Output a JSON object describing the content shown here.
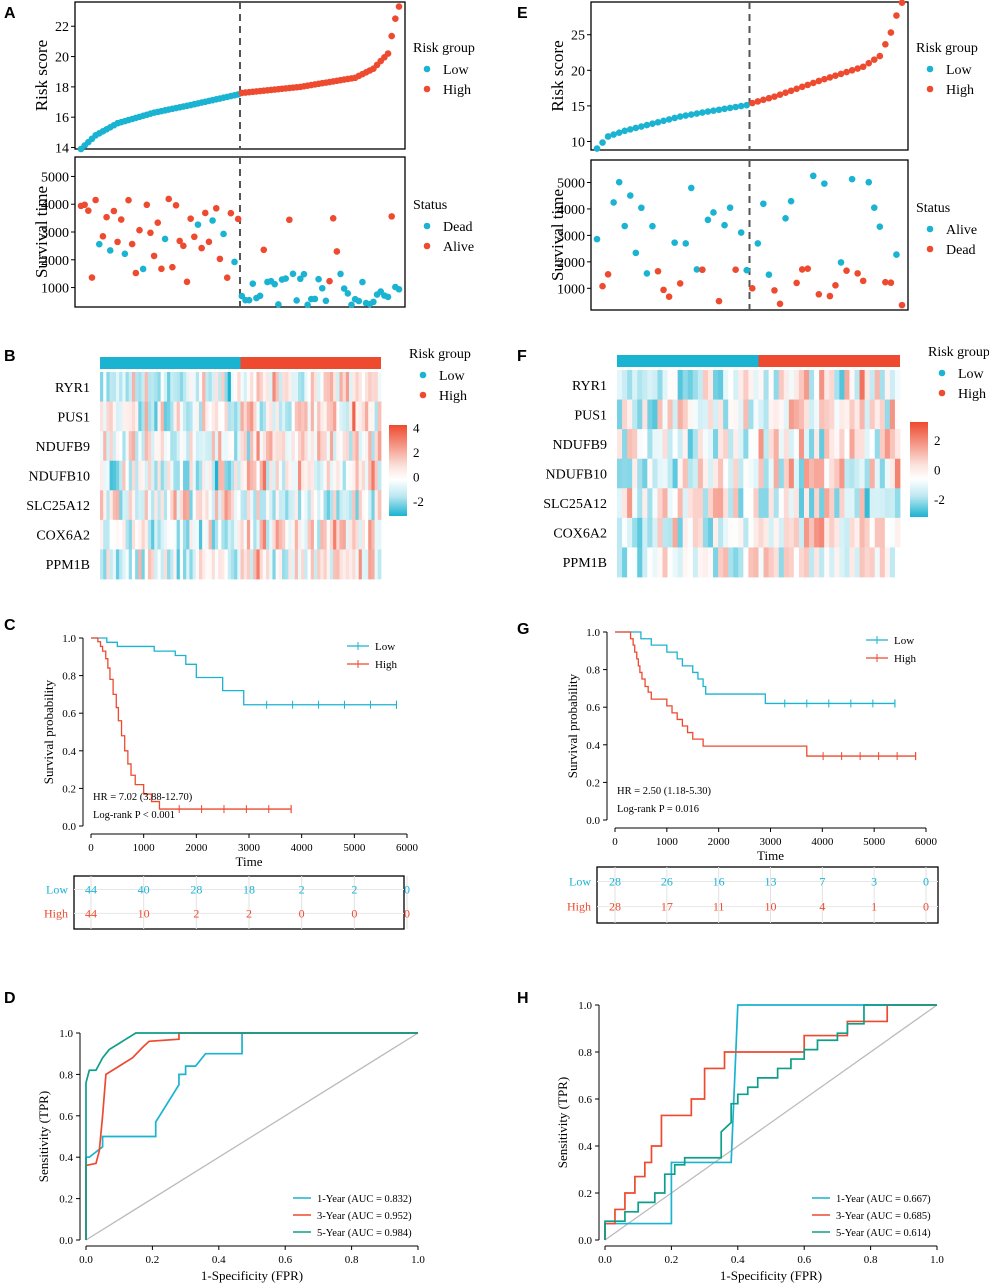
{
  "colors": {
    "low": "#1ab3d1",
    "high": "#ee4a2f",
    "roc1": "#1ab3d1",
    "roc3": "#ee4a2f",
    "roc5": "#0f9e8a",
    "heat_low": "#1ab3d1",
    "heat_high": "#ee4a2f",
    "grid": "#bbbbbb"
  },
  "panel_labels": [
    "A",
    "B",
    "C",
    "D",
    "E",
    "F",
    "G",
    "H"
  ],
  "chart_data": [
    {
      "panel": "A",
      "type": "scatter",
      "name": "risk-score",
      "ylabel": "Risk score",
      "ylim": [
        13.9,
        23.6
      ],
      "yticks": [
        14,
        16,
        18,
        20,
        22
      ],
      "n": 88,
      "cutoff_index": 44,
      "legend_title": "Risk group",
      "legend": [
        "Low",
        "High"
      ],
      "knots": [
        [
          0,
          13.9
        ],
        [
          4,
          14.8
        ],
        [
          10,
          15.6
        ],
        [
          20,
          16.3
        ],
        [
          30,
          16.8
        ],
        [
          43,
          17.5
        ],
        [
          44,
          17.6
        ],
        [
          60,
          18.0
        ],
        [
          75,
          18.6
        ],
        [
          80,
          19.2
        ],
        [
          84,
          20.2
        ],
        [
          86,
          22.5
        ],
        [
          87,
          23.3
        ]
      ]
    },
    {
      "panel": "A",
      "type": "scatter",
      "name": "survival-time",
      "ylabel": "Survival time",
      "ylim": [
        300,
        5700
      ],
      "yticks": [
        1000,
        2000,
        3000,
        4000,
        5000
      ],
      "n": 88,
      "cutoff_index": 44,
      "legend_title": "Status",
      "legend": [
        "Dead",
        "Alive"
      ]
    },
    {
      "panel": "B",
      "type": "heatmap",
      "name": "expression",
      "genes": [
        "RYR1",
        "PUS1",
        "NDUFB9",
        "NDUFB10",
        "SLC25A12",
        "COX6A2",
        "PPM1B"
      ],
      "scale_ticks": [
        "4",
        "2",
        "0",
        "-2"
      ],
      "scale_range": [
        -3.2,
        4.2
      ],
      "legend_title": "Risk group",
      "legend": [
        "Low",
        "High"
      ],
      "n": 88,
      "cutoff_index": 44
    },
    {
      "panel": "C",
      "type": "line",
      "name": "km",
      "xlabel": "Time",
      "ylabel": "Survival probability",
      "xlim": [
        0,
        6000
      ],
      "xticks": [
        0,
        1000,
        2000,
        3000,
        4000,
        5000,
        6000
      ],
      "ylim": [
        0,
        1
      ],
      "yticks": [
        "0.0",
        "0.2",
        "0.4",
        "0.6",
        "0.8",
        "1.0"
      ],
      "annotation": [
        "HR = 7.02 (3.88-12.70)",
        "Log-rank P < 0.001"
      ],
      "series": [
        {
          "name": "Low",
          "steps": [
            [
              0,
              1.0
            ],
            [
              300,
              0.977
            ],
            [
              500,
              0.955
            ],
            [
              1200,
              0.93
            ],
            [
              1600,
              0.907
            ],
            [
              1800,
              0.86
            ],
            [
              2000,
              0.79
            ],
            [
              2500,
              0.72
            ],
            [
              2900,
              0.645
            ],
            [
              5800,
              0.645
            ]
          ]
        },
        {
          "name": "High",
          "steps": [
            [
              0,
              1.0
            ],
            [
              130,
              0.98
            ],
            [
              180,
              0.955
            ],
            [
              220,
              0.93
            ],
            [
              280,
              0.89
            ],
            [
              320,
              0.84
            ],
            [
              360,
              0.78
            ],
            [
              420,
              0.7
            ],
            [
              480,
              0.63
            ],
            [
              520,
              0.56
            ],
            [
              580,
              0.48
            ],
            [
              640,
              0.4
            ],
            [
              700,
              0.33
            ],
            [
              760,
              0.27
            ],
            [
              840,
              0.22
            ],
            [
              1000,
              0.17
            ],
            [
              1150,
              0.13
            ],
            [
              1300,
              0.09
            ],
            [
              3800,
              0.09
            ]
          ]
        }
      ],
      "risk_table": {
        "rows": [
          {
            "label": "Low",
            "values": [
              "44",
              "40",
              "28",
              "18",
              "2",
              "2",
              "0"
            ]
          },
          {
            "label": "High",
            "values": [
              "44",
              "10",
              "2",
              "2",
              "0",
              "0",
              "0"
            ]
          }
        ]
      }
    },
    {
      "panel": "D",
      "type": "line",
      "name": "roc",
      "xlabel": "1-Specificity (FPR)",
      "ylabel": "Sensitivity (TPR)",
      "xlim": [
        0,
        1
      ],
      "ylim": [
        0,
        1
      ],
      "ticks": [
        "0.0",
        "0.2",
        "0.4",
        "0.6",
        "0.8",
        "1.0"
      ],
      "series": [
        {
          "name": "1-Year (AUC = 0.832)",
          "points": [
            [
              0,
              0
            ],
            [
              0,
              0.4
            ],
            [
              0.01,
              0.4
            ],
            [
              0.05,
              0.45
            ],
            [
              0.05,
              0.5
            ],
            [
              0.15,
              0.5
            ],
            [
              0.21,
              0.5
            ],
            [
              0.21,
              0.57
            ],
            [
              0.28,
              0.75
            ],
            [
              0.28,
              0.8
            ],
            [
              0.3,
              0.8
            ],
            [
              0.3,
              0.84
            ],
            [
              0.33,
              0.84
            ],
            [
              0.36,
              0.9
            ],
            [
              0.47,
              0.9
            ],
            [
              0.47,
              1
            ],
            [
              1,
              1
            ]
          ]
        },
        {
          "name": "3-Year (AUC = 0.952)",
          "points": [
            [
              0,
              0
            ],
            [
              0,
              0.36
            ],
            [
              0.03,
              0.37
            ],
            [
              0.04,
              0.43
            ],
            [
              0.05,
              0.6
            ],
            [
              0.06,
              0.8
            ],
            [
              0.1,
              0.84
            ],
            [
              0.14,
              0.88
            ],
            [
              0.17,
              0.93
            ],
            [
              0.19,
              0.96
            ],
            [
              0.28,
              0.97
            ],
            [
              0.28,
              1
            ],
            [
              1,
              1
            ]
          ]
        },
        {
          "name": "5-Year (AUC = 0.984)",
          "points": [
            [
              0,
              0
            ],
            [
              0,
              0.76
            ],
            [
              0.01,
              0.82
            ],
            [
              0.03,
              0.82
            ],
            [
              0.05,
              0.88
            ],
            [
              0.07,
              0.92
            ],
            [
              0.1,
              0.95
            ],
            [
              0.12,
              0.97
            ],
            [
              0.15,
              1
            ],
            [
              1,
              1
            ]
          ]
        }
      ]
    },
    {
      "panel": "E",
      "type": "scatter",
      "name": "risk-score",
      "ylabel": "Risk score",
      "ylim": [
        8.8,
        29.6
      ],
      "yticks": [
        10,
        15,
        20,
        25
      ],
      "n": 56,
      "cutoff_index": 28,
      "legend_title": "Risk group",
      "legend": [
        "Low",
        "High"
      ],
      "knots": [
        [
          0,
          9.0
        ],
        [
          2,
          10.7
        ],
        [
          5,
          11.5
        ],
        [
          10,
          12.5
        ],
        [
          15,
          13.5
        ],
        [
          20,
          14.2
        ],
        [
          27,
          15.1
        ],
        [
          28,
          15.4
        ],
        [
          32,
          16.3
        ],
        [
          40,
          18.5
        ],
        [
          48,
          20.5
        ],
        [
          51,
          22.0
        ],
        [
          53,
          25.3
        ],
        [
          54,
          27.7
        ],
        [
          55,
          29.5
        ]
      ]
    },
    {
      "panel": "E",
      "type": "scatter",
      "name": "survival-time",
      "ylabel": "Survival time",
      "ylim": [
        180,
        5850
      ],
      "yticks": [
        1000,
        2000,
        3000,
        4000,
        5000
      ],
      "n": 56,
      "cutoff_index": 28,
      "legend_title": "Status",
      "legend": [
        "Alive",
        "Dead"
      ]
    },
    {
      "panel": "F",
      "type": "heatmap",
      "name": "expression",
      "genes": [
        "RYR1",
        "PUS1",
        "NDUFB9",
        "NDUFB10",
        "SLC25A12",
        "COX6A2",
        "PPM1B"
      ],
      "scale_ticks": [
        "2",
        "0",
        "-2"
      ],
      "scale_range": [
        -3.2,
        3.2
      ],
      "legend_title": "Risk group",
      "legend": [
        "Low",
        "High"
      ],
      "n": 56,
      "cutoff_index": 28
    },
    {
      "panel": "G",
      "type": "line",
      "name": "km",
      "xlabel": "Time",
      "ylabel": "Survival probability",
      "xlim": [
        0,
        6000
      ],
      "xticks": [
        0,
        1000,
        2000,
        3000,
        4000,
        5000,
        6000
      ],
      "ylim": [
        0,
        1
      ],
      "yticks": [
        "0.0",
        "0.2",
        "0.4",
        "0.6",
        "0.8",
        "1.0"
      ],
      "annotation": [
        "HR = 2.50 (1.18-5.30)",
        "Log-rank P = 0.016"
      ],
      "series": [
        {
          "name": "Low",
          "steps": [
            [
              0,
              1.0
            ],
            [
              500,
              0.964
            ],
            [
              700,
              0.93
            ],
            [
              1000,
              0.893
            ],
            [
              1200,
              0.857
            ],
            [
              1300,
              0.82
            ],
            [
              1500,
              0.785
            ],
            [
              1600,
              0.75
            ],
            [
              1700,
              0.71
            ],
            [
              1750,
              0.67
            ],
            [
              2900,
              0.62
            ],
            [
              5400,
              0.62
            ]
          ]
        },
        {
          "name": "High",
          "steps": [
            [
              0,
              1.0
            ],
            [
              300,
              0.964
            ],
            [
              350,
              0.93
            ],
            [
              380,
              0.893
            ],
            [
              420,
              0.857
            ],
            [
              450,
              0.82
            ],
            [
              480,
              0.785
            ],
            [
              520,
              0.75
            ],
            [
              580,
              0.71
            ],
            [
              640,
              0.68
            ],
            [
              700,
              0.643
            ],
            [
              1000,
              0.607
            ],
            [
              1100,
              0.57
            ],
            [
              1200,
              0.535
            ],
            [
              1300,
              0.5
            ],
            [
              1400,
              0.465
            ],
            [
              1500,
              0.43
            ],
            [
              1700,
              0.393
            ],
            [
              3700,
              0.34
            ],
            [
              5800,
              0.34
            ]
          ]
        }
      ],
      "risk_table": {
        "rows": [
          {
            "label": "Low",
            "values": [
              "28",
              "26",
              "16",
              "13",
              "7",
              "3",
              "0"
            ]
          },
          {
            "label": "High",
            "values": [
              "28",
              "17",
              "11",
              "10",
              "4",
              "1",
              "0"
            ]
          }
        ]
      }
    },
    {
      "panel": "H",
      "type": "line",
      "name": "roc",
      "xlabel": "1-Specificity (FPR)",
      "ylabel": "Sensitivity (TPR)",
      "xlim": [
        0,
        1
      ],
      "ylim": [
        0,
        1
      ],
      "ticks": [
        "0.0",
        "0.2",
        "0.4",
        "0.6",
        "0.8",
        "1.0"
      ],
      "series": [
        {
          "name": "1-Year (AUC = 0.667)",
          "points": [
            [
              0,
              0
            ],
            [
              0,
              0.07
            ],
            [
              0.2,
              0.07
            ],
            [
              0.2,
              0.33
            ],
            [
              0.38,
              0.33
            ],
            [
              0.4,
              1
            ],
            [
              1,
              1
            ]
          ]
        },
        {
          "name": "3-Year (AUC = 0.685)",
          "points": [
            [
              0,
              0
            ],
            [
              0,
              0.07
            ],
            [
              0.03,
              0.07
            ],
            [
              0.03,
              0.13
            ],
            [
              0.06,
              0.13
            ],
            [
              0.06,
              0.2
            ],
            [
              0.09,
              0.2
            ],
            [
              0.09,
              0.27
            ],
            [
              0.12,
              0.27
            ],
            [
              0.12,
              0.33
            ],
            [
              0.14,
              0.33
            ],
            [
              0.14,
              0.4
            ],
            [
              0.17,
              0.4
            ],
            [
              0.17,
              0.53
            ],
            [
              0.26,
              0.53
            ],
            [
              0.26,
              0.6
            ],
            [
              0.3,
              0.6
            ],
            [
              0.3,
              0.73
            ],
            [
              0.36,
              0.73
            ],
            [
              0.36,
              0.8
            ],
            [
              0.6,
              0.8
            ],
            [
              0.6,
              0.87
            ],
            [
              0.73,
              0.87
            ],
            [
              0.73,
              0.93
            ],
            [
              0.85,
              0.93
            ],
            [
              0.85,
              1
            ],
            [
              1,
              1
            ]
          ]
        },
        {
          "name": "5-Year (AUC = 0.614)",
          "points": [
            [
              0,
              0
            ],
            [
              0,
              0.08
            ],
            [
              0.06,
              0.08
            ],
            [
              0.06,
              0.12
            ],
            [
              0.1,
              0.12
            ],
            [
              0.1,
              0.16
            ],
            [
              0.15,
              0.16
            ],
            [
              0.15,
              0.2
            ],
            [
              0.18,
              0.2
            ],
            [
              0.18,
              0.28
            ],
            [
              0.21,
              0.28
            ],
            [
              0.21,
              0.32
            ],
            [
              0.24,
              0.32
            ],
            [
              0.24,
              0.35
            ],
            [
              0.35,
              0.35
            ],
            [
              0.35,
              0.46
            ],
            [
              0.38,
              0.5
            ],
            [
              0.38,
              0.58
            ],
            [
              0.4,
              0.58
            ],
            [
              0.4,
              0.62
            ],
            [
              0.43,
              0.62
            ],
            [
              0.43,
              0.65
            ],
            [
              0.46,
              0.65
            ],
            [
              0.46,
              0.69
            ],
            [
              0.52,
              0.69
            ],
            [
              0.52,
              0.73
            ],
            [
              0.56,
              0.73
            ],
            [
              0.56,
              0.77
            ],
            [
              0.6,
              0.77
            ],
            [
              0.6,
              0.81
            ],
            [
              0.64,
              0.81
            ],
            [
              0.64,
              0.85
            ],
            [
              0.7,
              0.85
            ],
            [
              0.7,
              0.88
            ],
            [
              0.73,
              0.88
            ],
            [
              0.73,
              0.92
            ],
            [
              0.78,
              0.92
            ],
            [
              0.78,
              1
            ],
            [
              1,
              1
            ]
          ]
        }
      ]
    }
  ]
}
